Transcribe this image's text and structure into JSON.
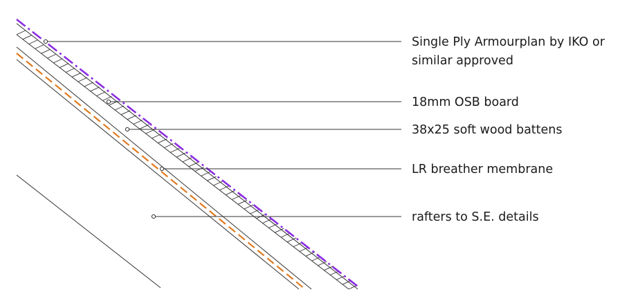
{
  "diagram": {
    "colors": {
      "ink": "#1a1a1a",
      "line": "#333333",
      "membrane": "#8a2be2",
      "breather": "#e07a1f",
      "background": "#ffffff"
    },
    "labels": [
      {
        "id": "single-ply",
        "lines": [
          "Single Ply Armourplan by IKO or",
          "similar approved"
        ]
      },
      {
        "id": "osb-board",
        "lines": [
          "18mm OSB board"
        ]
      },
      {
        "id": "battens",
        "lines": [
          "38x25 soft wood battens"
        ]
      },
      {
        "id": "breather-membrane",
        "lines": [
          "LR breather membrane"
        ]
      },
      {
        "id": "rafters",
        "lines": [
          "rafters to S.E. details"
        ]
      }
    ]
  }
}
